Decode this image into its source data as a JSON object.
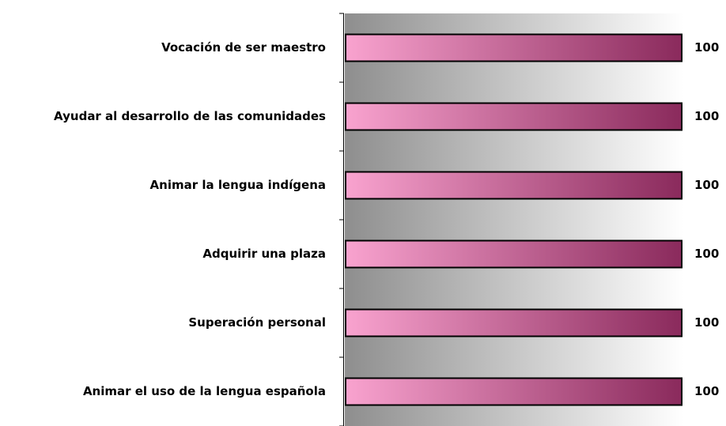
{
  "chart_data": {
    "type": "bar",
    "orientation": "horizontal",
    "categories": [
      "Vocación de ser maestro",
      "Ayudar al desarrollo de las comunidades",
      "Animar la lengua indígena",
      "Adquirir una plaza",
      "Superación personal",
      "Animar el uso de la lengua española"
    ],
    "values": [
      100,
      100,
      100,
      100,
      100,
      100
    ],
    "color": [
      "#f9a3cf",
      "#8a2a5c"
    ],
    "xlim": [
      0,
      100
    ]
  }
}
